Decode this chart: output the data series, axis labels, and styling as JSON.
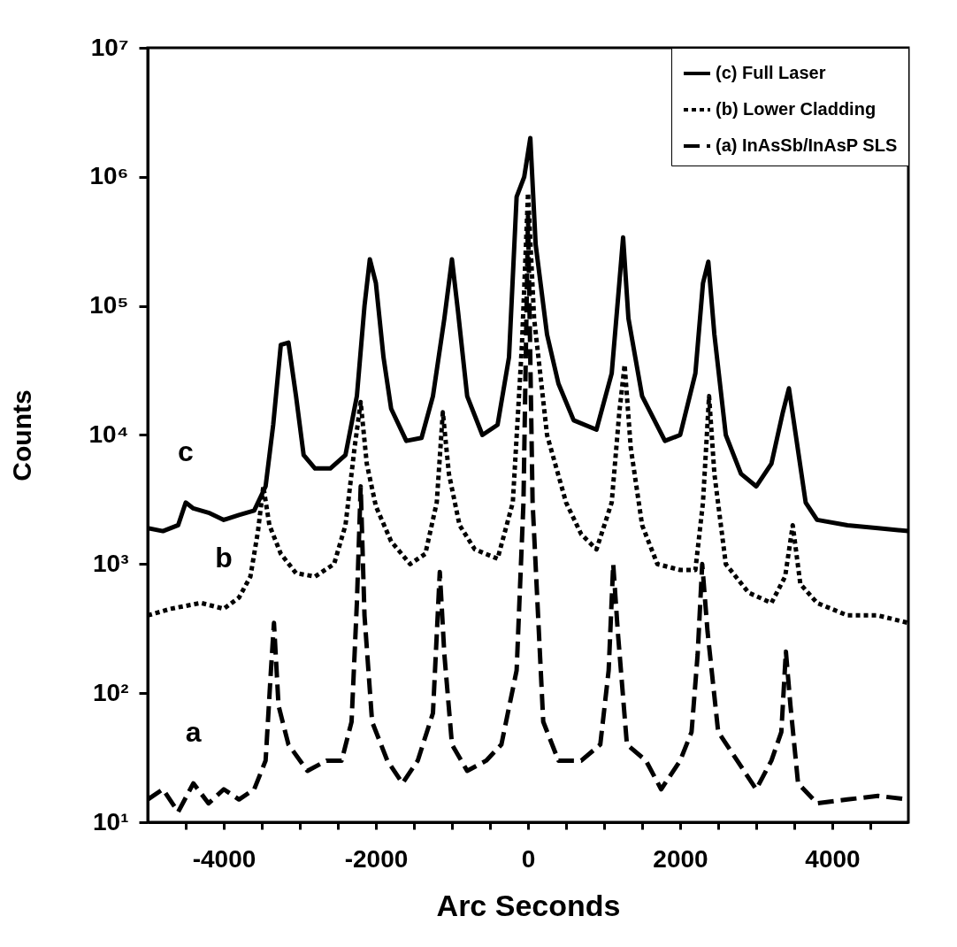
{
  "chart_data": {
    "type": "line",
    "xlabel": "Arc Seconds",
    "ylabel": "Counts",
    "log": "y",
    "legend": "top right",
    "xlim": [
      -5000,
      5000
    ],
    "ylim": [
      10,
      10000000
    ],
    "xticks": [
      {
        "value": -4500,
        "label": null
      },
      -4000,
      {
        "value": -3500,
        "label": null
      },
      {
        "value": -3000,
        "label": null
      },
      {
        "value": -2500,
        "label": null
      },
      -2000,
      {
        "value": -1500,
        "label": null
      },
      {
        "value": -1000,
        "label": null
      },
      {
        "value": -500,
        "label": null
      },
      0,
      {
        "value": 500,
        "label": null
      },
      {
        "value": 1000,
        "label": null
      },
      {
        "value": 1500,
        "label": null
      },
      2000,
      {
        "value": 2500,
        "label": null
      },
      {
        "value": 3000,
        "label": null
      },
      {
        "value": 3500,
        "label": null
      },
      4000,
      {
        "value": 4500,
        "label": null
      }
    ],
    "yticks": [
      {
        "value": 10,
        "label": "10¹"
      },
      {
        "value": 100,
        "label": "10²"
      },
      {
        "value": 1000,
        "label": "10³"
      },
      {
        "value": 10000,
        "label": "10⁴"
      },
      {
        "value": 100000,
        "label": "10⁵"
      },
      {
        "value": 1000000,
        "label": "10⁶"
      },
      {
        "value": 10000000,
        "label": "10⁷"
      }
    ],
    "annotations": [
      "c",
      "b",
      "a"
    ],
    "series": [
      {
        "name": "(c) Full Laser",
        "color": "#000000",
        "line_style": "solid",
        "x": [
          -5000,
          -4800,
          -4600,
          -4500,
          -4400,
          -4200,
          -4000,
          -3800,
          -3600,
          -3450,
          -3350,
          -3250,
          -3150,
          -3050,
          -2950,
          -2800,
          -2600,
          -2400,
          -2250,
          -2150,
          -2080,
          -2000,
          -1900,
          -1800,
          -1600,
          -1400,
          -1250,
          -1100,
          -1000,
          -920,
          -800,
          -600,
          -400,
          -250,
          -150,
          -50,
          30,
          100,
          250,
          400,
          600,
          900,
          1100,
          1200,
          1250,
          1320,
          1500,
          1800,
          2000,
          2200,
          2300,
          2370,
          2450,
          2600,
          2800,
          3000,
          3200,
          3350,
          3430,
          3520,
          3650,
          3800,
          4200,
          4600,
          5000
        ],
        "values": [
          1900,
          1800,
          2000,
          3000,
          2700,
          2500,
          2200,
          2400,
          2600,
          4000,
          12000,
          50000,
          52000,
          20000,
          7000,
          5500,
          5500,
          7000,
          20000,
          100000,
          230000,
          150000,
          40000,
          16000,
          9000,
          9500,
          20000,
          80000,
          230000,
          90000,
          20000,
          10000,
          12000,
          40000,
          700000,
          1000000,
          2000000,
          300000,
          60000,
          25000,
          13000,
          11000,
          30000,
          150000,
          340000,
          80000,
          20000,
          9000,
          10000,
          30000,
          150000,
          220000,
          60000,
          10000,
          5000,
          4000,
          6000,
          15000,
          23000,
          10000,
          3000,
          2200,
          2000,
          1900,
          1800
        ]
      },
      {
        "name": "(b) Lower Cladding",
        "color": "#000000",
        "line_style": "dotted",
        "x": [
          -5000,
          -4700,
          -4300,
          -4000,
          -3800,
          -3650,
          -3550,
          -3480,
          -3400,
          -3250,
          -3050,
          -2800,
          -2550,
          -2400,
          -2280,
          -2200,
          -2120,
          -2000,
          -1800,
          -1550,
          -1350,
          -1200,
          -1120,
          -1040,
          -900,
          -700,
          -400,
          -200,
          -80,
          0,
          80,
          250,
          500,
          700,
          900,
          1100,
          1200,
          1270,
          1350,
          1500,
          1700,
          2000,
          2200,
          2300,
          2380,
          2450,
          2600,
          2900,
          3200,
          3380,
          3480,
          3580,
          3800,
          4200,
          4600,
          5000
        ],
        "values": [
          400,
          450,
          500,
          450,
          550,
          800,
          1800,
          4000,
          2000,
          1200,
          850,
          800,
          1000,
          2000,
          8000,
          18000,
          6000,
          2800,
          1500,
          1000,
          1200,
          3000,
          15000,
          5000,
          2000,
          1300,
          1100,
          3000,
          50000,
          750000,
          80000,
          10000,
          3000,
          1700,
          1300,
          3000,
          15000,
          35000,
          8000,
          2000,
          1000,
          900,
          900,
          3000,
          20000,
          5000,
          1000,
          600,
          500,
          800,
          2000,
          700,
          500,
          400,
          400,
          350
        ]
      },
      {
        "name": "(a) InAsSb/InAsP SLS",
        "color": "#000000",
        "line_style": "dashed",
        "x": [
          -5000,
          -4800,
          -4600,
          -4400,
          -4200,
          -4000,
          -3800,
          -3600,
          -3450,
          -3380,
          -3340,
          -3280,
          -3150,
          -2900,
          -2650,
          -2450,
          -2320,
          -2250,
          -2200,
          -2150,
          -2050,
          -1850,
          -1650,
          -1450,
          -1250,
          -1160,
          -1100,
          -1000,
          -800,
          -550,
          -350,
          -150,
          -60,
          0,
          60,
          200,
          400,
          700,
          950,
          1060,
          1120,
          1180,
          1300,
          1550,
          1750,
          2000,
          2150,
          2230,
          2290,
          2360,
          2500,
          2750,
          3000,
          3200,
          3330,
          3390,
          3450,
          3550,
          3800,
          4200,
          4600,
          5000
        ],
        "values": [
          15,
          18,
          12,
          20,
          14,
          18,
          15,
          18,
          30,
          150,
          350,
          80,
          40,
          25,
          30,
          30,
          60,
          500,
          4000,
          400,
          60,
          30,
          20,
          30,
          70,
          870,
          200,
          40,
          25,
          30,
          40,
          150,
          3000,
          500000,
          3000,
          60,
          30,
          30,
          40,
          150,
          1000,
          300,
          40,
          30,
          18,
          30,
          50,
          200,
          1000,
          300,
          50,
          30,
          18,
          30,
          50,
          210,
          80,
          20,
          14,
          15,
          16,
          15
        ]
      }
    ]
  }
}
